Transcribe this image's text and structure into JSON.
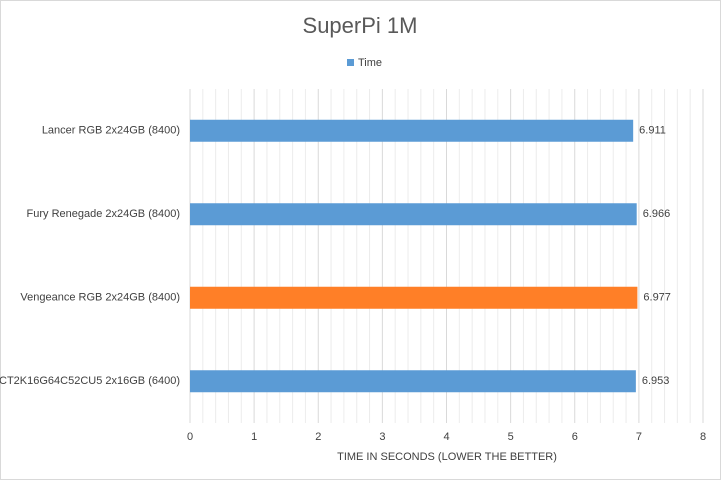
{
  "chart_data": {
    "type": "hbar",
    "title": "SuperPi 1M",
    "categories": [
      "Lancer RGB 2x24GB (8400)",
      "Fury Renegade 2x24GB (8400)",
      "Vengeance RGB 2x24GB (8400)",
      "CT2K16G64C52CU5 2x16GB (6400)"
    ],
    "series": [
      {
        "name": "Time",
        "color": "#5b9bd5",
        "values": [
          6.911,
          6.966,
          6.977,
          6.953
        ],
        "colors": [
          "#5b9bd5",
          "#5b9bd5",
          "#ff7f27",
          "#5b9bd5"
        ]
      }
    ],
    "xlabel": "TIME IN SECONDS (LOWER THE BETTER)",
    "xlim": [
      0,
      8
    ],
    "xticks": [
      0,
      1,
      2,
      3,
      4,
      5,
      6,
      7,
      8
    ],
    "grid": true,
    "legend": "top"
  }
}
